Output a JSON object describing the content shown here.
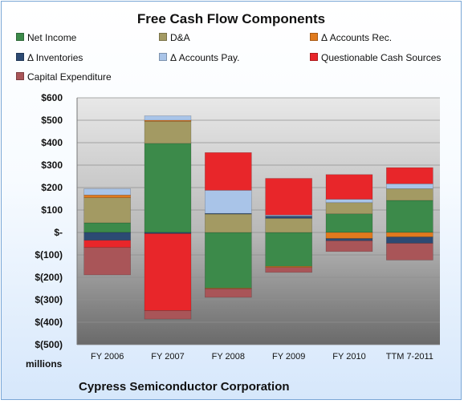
{
  "chart_data": {
    "type": "bar",
    "stacked": true,
    "title": "Free Cash Flow Components",
    "ylabel": "millions",
    "footer": "Cypress Semiconductor Corporation",
    "ylim": [
      -500,
      600
    ],
    "yticks": [
      600,
      500,
      400,
      300,
      200,
      100,
      0,
      -100,
      -200,
      -300,
      -400,
      -500
    ],
    "ytick_labels": [
      "$600",
      "$500",
      "$400",
      "$300",
      "$200",
      "$100",
      "$-",
      "$(100)",
      "$(200)",
      "$(300)",
      "$(400)",
      "$(500)"
    ],
    "categories": [
      "FY 2006",
      "FY 2007",
      "FY 2008",
      "FY 2009",
      "FY 2010",
      "TTM 7-2011"
    ],
    "grid": true,
    "legend_position": "top",
    "series": [
      {
        "name": "Net Income",
        "color": "#3c8a4a",
        "values": [
          43,
          397,
          -248,
          -151,
          83,
          143
        ]
      },
      {
        "name": "D&A",
        "color": "#a39a63",
        "values": [
          112,
          98,
          82,
          63,
          50,
          52
        ]
      },
      {
        "name": "Δ Accounts Rec.",
        "color": "#e07a1e",
        "values": [
          12,
          5,
          -3,
          -5,
          -27,
          -20
        ]
      },
      {
        "name": "Δ Inventories",
        "color": "#2c4a73",
        "values": [
          -35,
          -5,
          3,
          10,
          -10,
          -28
        ]
      },
      {
        "name": "Δ Accounts Pay.",
        "color": "#a9c4e8",
        "values": [
          28,
          20,
          103,
          5,
          15,
          22
        ]
      },
      {
        "name": "Questionable Cash Sources",
        "color": "#e8262a",
        "values": [
          -32,
          -343,
          168,
          163,
          110,
          72
        ]
      },
      {
        "name": "Capital Expenditure",
        "color": "#a95558",
        "values": [
          -122,
          -38,
          -38,
          -22,
          -48,
          -75
        ]
      }
    ]
  }
}
